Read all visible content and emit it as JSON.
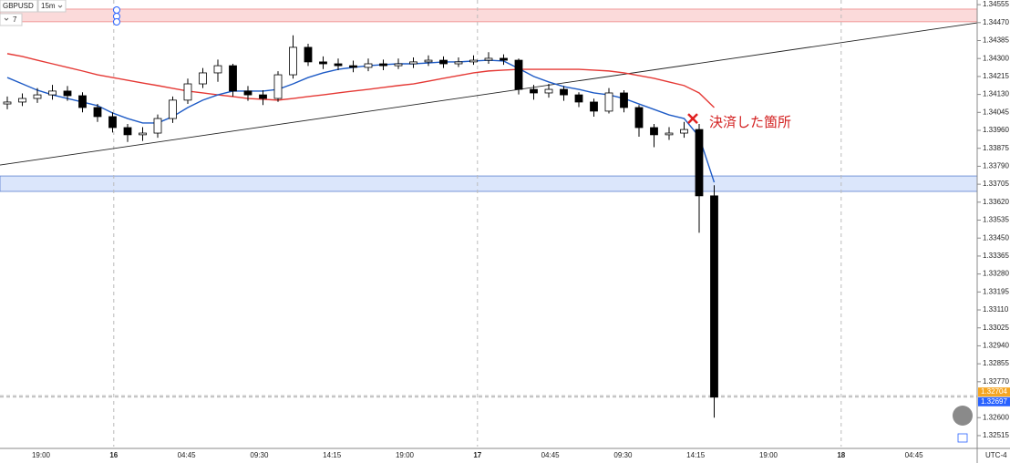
{
  "chart_data": {
    "type": "candlestick",
    "symbol": "GBPUSD",
    "interval": "15m",
    "indicator_count": "7",
    "timezone": "UTC-4",
    "annotation": "決済した箇所",
    "xlabels": [
      "19:00",
      "16",
      "04:45",
      "09:30",
      "14:15",
      "19:00",
      "17",
      "04:45",
      "09:30",
      "14:15",
      "19:00",
      "18",
      "04:45"
    ],
    "ylim": [
      1.32463,
      1.34577
    ],
    "yticks": [
      1.34555,
      {
        "value": 1.3447,
        "label": "1.34470"
      },
      1.34385,
      {
        "value": 1.343,
        "label": "1.34300"
      },
      1.34215,
      {
        "value": 1.3413,
        "label": "1.34130"
      },
      1.34045,
      {
        "value": 1.3396,
        "label": "1.33960"
      },
      1.33875,
      {
        "value": 1.3379,
        "label": "1.33790"
      },
      1.33705,
      {
        "value": 1.3362,
        "label": "1.33620"
      },
      1.33535,
      {
        "value": 1.3345,
        "label": "1.33450"
      },
      1.33365,
      {
        "value": 1.3328,
        "label": "1.33280"
      },
      1.33195,
      {
        "value": 1.3311,
        "label": "1.33110"
      },
      1.33025,
      {
        "value": 1.3294,
        "label": "1.32940"
      },
      1.32855,
      {
        "value": 1.3277,
        "label": "1.32770"
      },
      {
        "value": 1.326,
        "label": "1.32600"
      },
      1.32515
    ],
    "grid": false,
    "up_color": "#ffffff",
    "down_color": "#000000",
    "open": [
      1.34085,
      1.34094,
      1.34111,
      1.34128,
      1.34146,
      1.34124,
      1.34068,
      1.34025,
      1.33973,
      1.33939,
      1.33947,
      1.34016,
      1.34103,
      1.3418,
      1.34232,
      1.34266,
      1.34146,
      1.34128,
      1.34111,
      1.34223,
      1.34353,
      1.34284,
      1.34275,
      1.34266,
      1.34258,
      1.34275,
      1.34266,
      1.34275,
      1.34284,
      1.34292,
      1.34275,
      1.34284,
      1.34292,
      1.34301,
      1.34292,
      1.34154,
      1.34137,
      1.34154,
      1.34128,
      1.34094,
      1.34051,
      1.34137,
      1.34068,
      1.33973,
      1.33939,
      1.33947,
      1.33964,
      1.3365
    ],
    "high": [
      1.3412,
      1.34135,
      1.3416,
      1.34175,
      1.3417,
      1.3414,
      1.34085,
      1.34045,
      1.3399,
      1.33975,
      1.34035,
      1.3412,
      1.34205,
      1.34255,
      1.34295,
      1.34275,
      1.3417,
      1.3415,
      1.3424,
      1.3441,
      1.3437,
      1.3431,
      1.343,
      1.3429,
      1.343,
      1.34295,
      1.343,
      1.34305,
      1.34315,
      1.3431,
      1.34305,
      1.34315,
      1.3433,
      1.3432,
      1.343,
      1.34175,
      1.3418,
      1.3417,
      1.3414,
      1.3411,
      1.3416,
      1.3415,
      1.3408,
      1.3399,
      1.33975,
      1.34,
      1.3399,
      1.337
    ],
    "low": [
      1.3406,
      1.34075,
      1.3409,
      1.34105,
      1.341,
      1.34045,
      1.34,
      1.3395,
      1.33905,
      1.3391,
      1.33925,
      1.33995,
      1.34085,
      1.3416,
      1.3419,
      1.3412,
      1.341,
      1.3408,
      1.34095,
      1.34205,
      1.34265,
      1.3425,
      1.34245,
      1.34235,
      1.3424,
      1.34245,
      1.3425,
      1.34255,
      1.34265,
      1.34255,
      1.3426,
      1.3427,
      1.34275,
      1.3427,
      1.3413,
      1.34105,
      1.34115,
      1.341,
      1.3407,
      1.34025,
      1.3404,
      1.34045,
      1.3393,
      1.3388,
      1.33915,
      1.33925,
      1.33475,
      1.326
    ],
    "close": [
      1.34094,
      1.34111,
      1.34128,
      1.34146,
      1.34124,
      1.34068,
      1.34025,
      1.33973,
      1.33939,
      1.33947,
      1.34016,
      1.34103,
      1.3418,
      1.34232,
      1.34266,
      1.34146,
      1.34128,
      1.34111,
      1.34223,
      1.34353,
      1.34284,
      1.34275,
      1.34266,
      1.34258,
      1.34275,
      1.34266,
      1.34275,
      1.34284,
      1.34292,
      1.34275,
      1.34284,
      1.34292,
      1.34301,
      1.34292,
      1.34154,
      1.34137,
      1.34154,
      1.34128,
      1.34094,
      1.34051,
      1.34137,
      1.34068,
      1.33973,
      1.33939,
      1.33947,
      1.33964,
      1.3365,
      1.32697
    ],
    "series": [
      {
        "color": "#e53935",
        "values": [
          1.34323,
          1.3431,
          1.34292,
          1.34275,
          1.34258,
          1.34241,
          1.34223,
          1.3421,
          1.34197,
          1.34184,
          1.34172,
          1.34159,
          1.34146,
          1.34137,
          1.34128,
          1.3412,
          1.34111,
          1.34107,
          1.34103,
          1.34111,
          1.3412,
          1.34128,
          1.34137,
          1.34146,
          1.34154,
          1.34163,
          1.34172,
          1.3418,
          1.34193,
          1.34206,
          1.34219,
          1.34232,
          1.34241,
          1.34245,
          1.34249,
          1.34249,
          1.34249,
          1.34249,
          1.34249,
          1.34245,
          1.34241,
          1.34232,
          1.34219,
          1.34206,
          1.34189,
          1.34172,
          1.34137,
          1.34068
        ]
      },
      {
        "color": "#1e5bc6",
        "values": [
          1.3421,
          1.3418,
          1.3415,
          1.34128,
          1.34111,
          1.34094,
          1.34077,
          1.34042,
          1.34016,
          1.33995,
          1.33995,
          1.34025,
          1.34068,
          1.34103,
          1.34128,
          1.34146,
          1.34146,
          1.34146,
          1.34154,
          1.3418,
          1.3421,
          1.34232,
          1.34249,
          1.34258,
          1.34266,
          1.34271,
          1.34275,
          1.34275,
          1.34279,
          1.34284,
          1.34284,
          1.34288,
          1.34292,
          1.34288,
          1.34253,
          1.34215,
          1.34189,
          1.34167,
          1.34154,
          1.34137,
          1.34128,
          1.34111,
          1.34085,
          1.34059,
          1.34033,
          1.34016,
          1.3393,
          1.33714
        ]
      }
    ],
    "trendline": [
      1.33796,
      1.34469
    ],
    "zones": [
      {
        "from": 1.34474,
        "to": 1.34534,
        "color": "#fbdada"
      },
      {
        "from": 1.33671,
        "to": 1.33744,
        "color": "#dbe6fb"
      }
    ],
    "price_lines": [
      {
        "value": 1.32704,
        "color": "#f5a623"
      },
      {
        "value": 1.32697,
        "color": "#2962ff"
      }
    ]
  }
}
